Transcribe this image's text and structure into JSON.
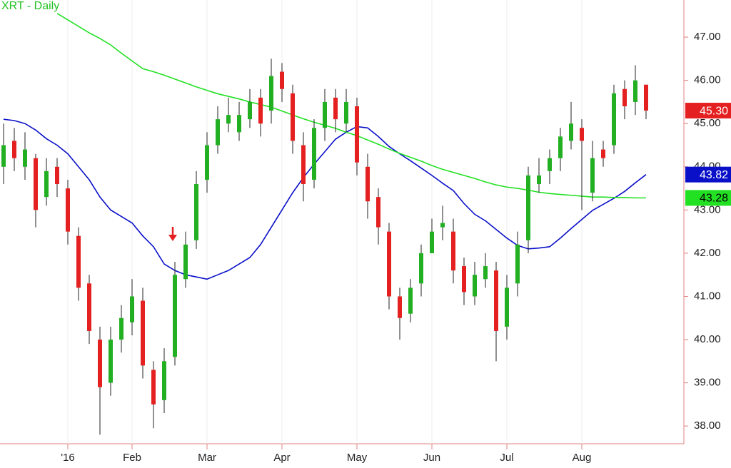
{
  "chart_data": {
    "type": "candlestick",
    "title": "XRT - Daily",
    "categories": [
      null,
      null,
      null,
      null,
      null,
      null,
      "'16",
      null,
      null,
      null,
      null,
      null,
      "Feb",
      null,
      null,
      null,
      null,
      null,
      null,
      "Mar",
      null,
      null,
      null,
      null,
      null,
      null,
      "Apr",
      null,
      null,
      null,
      null,
      null,
      null,
      "May",
      null,
      null,
      null,
      null,
      null,
      null,
      "Jun",
      null,
      null,
      null,
      null,
      null,
      null,
      "Jul",
      null,
      null,
      null,
      null,
      null,
      null,
      "Aug",
      null,
      null,
      null,
      null,
      null,
      null
    ],
    "open": [
      44.0,
      44.6,
      44.0,
      44.2,
      43.3,
      44.0,
      43.5,
      42.4,
      41.3,
      40.0,
      39.0,
      40.0,
      40.4,
      40.9,
      39.3,
      38.6,
      39.6,
      41.4,
      42.3,
      43.7,
      44.5,
      45.0,
      44.8,
      45.1,
      45.6,
      45.3,
      46.2,
      45.7,
      44.5,
      43.7,
      44.9,
      45.6,
      45.0,
      45.4,
      44.0,
      43.3,
      42.5,
      41.0,
      40.6,
      41.3,
      42.0,
      42.6,
      42.5,
      41.7,
      41.0,
      41.4,
      41.6,
      40.3,
      41.3,
      42.3,
      43.6,
      43.9,
      44.2,
      44.6,
      44.9,
      43.4,
      44.4,
      44.5,
      45.8,
      45.5,
      45.9
    ],
    "high": [
      45.0,
      44.9,
      44.8,
      44.3,
      44.2,
      44.2,
      43.7,
      42.6,
      41.5,
      40.3,
      40.3,
      40.8,
      41.4,
      41.2,
      39.5,
      39.8,
      41.8,
      42.5,
      43.9,
      44.8,
      45.4,
      45.6,
      45.5,
      45.8,
      45.8,
      46.5,
      46.4,
      45.9,
      44.8,
      45.1,
      45.8,
      45.8,
      45.8,
      45.6,
      44.3,
      43.5,
      42.7,
      41.2,
      41.4,
      42.2,
      42.8,
      43.1,
      42.8,
      41.9,
      41.8,
      42.0,
      41.8,
      41.5,
      42.5,
      44.0,
      44.2,
      44.4,
      44.9,
      45.5,
      45.1,
      44.6,
      44.6,
      45.9,
      46.0,
      46.35,
      45.9
    ],
    "low": [
      43.6,
      43.9,
      43.7,
      42.6,
      43.1,
      43.3,
      42.2,
      40.9,
      39.9,
      37.8,
      38.7,
      39.7,
      40.1,
      39.1,
      37.95,
      38.3,
      39.4,
      41.2,
      42.1,
      43.4,
      44.3,
      44.8,
      44.6,
      44.9,
      44.7,
      45.0,
      45.5,
      44.3,
      43.2,
      43.5,
      44.6,
      44.8,
      44.8,
      43.8,
      42.8,
      42.2,
      40.7,
      40.0,
      40.4,
      41.0,
      42.0,
      42.3,
      41.3,
      40.8,
      40.8,
      41.2,
      39.5,
      40.0,
      41.0,
      42.0,
      43.4,
      43.6,
      43.9,
      44.4,
      43.0,
      43.2,
      44.0,
      44.3,
      45.1,
      45.2,
      45.1
    ],
    "close": [
      44.5,
      44.2,
      44.4,
      43.0,
      43.9,
      43.6,
      42.5,
      41.2,
      40.2,
      38.9,
      40.0,
      40.5,
      41.0,
      39.4,
      38.5,
      39.5,
      41.5,
      42.2,
      43.6,
      44.5,
      45.1,
      45.2,
      45.2,
      45.5,
      45.0,
      46.1,
      45.8,
      44.6,
      43.6,
      44.9,
      45.5,
      45.1,
      45.5,
      44.1,
      43.2,
      42.6,
      41.0,
      40.5,
      41.2,
      42.0,
      42.5,
      42.7,
      41.6,
      41.1,
      41.5,
      41.7,
      40.2,
      41.2,
      42.2,
      43.8,
      43.8,
      44.2,
      44.7,
      45.0,
      44.6,
      44.2,
      44.2,
      45.7,
      45.4,
      46.0,
      45.3
    ],
    "up_color": "#22b022",
    "down_color": "#e52020",
    "last_label": {
      "value": 45.3,
      "label": "45.30",
      "color": "#e52020"
    },
    "moving_averages": [
      {
        "color": "#0a10c8",
        "values": [
          45.1,
          45.07,
          45.0,
          44.85,
          44.65,
          44.5,
          44.3,
          44.0,
          43.7,
          43.3,
          43.0,
          42.85,
          42.7,
          42.4,
          42.15,
          41.75,
          41.6,
          41.5,
          41.45,
          41.4,
          41.5,
          41.6,
          41.75,
          41.9,
          42.2,
          42.6,
          43.0,
          43.4,
          43.75,
          44.06,
          44.35,
          44.64,
          44.8,
          44.93,
          44.9,
          44.7,
          44.47,
          44.3,
          44.14,
          43.97,
          43.8,
          43.62,
          43.45,
          43.15,
          42.9,
          42.75,
          42.55,
          42.35,
          42.18,
          42.1,
          42.12,
          42.15,
          42.35,
          42.57,
          42.78,
          42.99,
          43.13,
          43.27,
          43.43,
          43.63,
          43.82
        ],
        "last_label": {
          "value": 43.82,
          "label": "43.82"
        }
      },
      {
        "color": "#22e022",
        "values": [
          null,
          null,
          null,
          null,
          null,
          47.55,
          47.4,
          47.25,
          47.1,
          46.97,
          46.82,
          46.63,
          46.45,
          46.27,
          46.2,
          46.12,
          46.03,
          45.94,
          45.85,
          45.77,
          45.69,
          45.63,
          45.57,
          45.5,
          45.44,
          45.38,
          45.29,
          45.2,
          45.11,
          45.03,
          44.96,
          44.89,
          44.8,
          44.72,
          44.62,
          44.52,
          44.41,
          44.31,
          44.22,
          44.13,
          44.03,
          43.94,
          43.87,
          43.8,
          43.73,
          43.65,
          43.58,
          43.53,
          43.5,
          43.46,
          43.41,
          43.38,
          43.36,
          43.34,
          43.32,
          43.3,
          43.3,
          43.29,
          43.29,
          43.28,
          43.28
        ],
        "last_label": {
          "value": 43.28,
          "label": "43.28"
        }
      }
    ],
    "ylim": [
      37.59,
      47.86
    ],
    "yticks": [
      {
        "value": 38,
        "label": "38.00"
      },
      {
        "value": 39,
        "label": "39.00"
      },
      {
        "value": 40,
        "label": "40.00"
      },
      {
        "value": 41,
        "label": "41.00"
      },
      {
        "value": 42,
        "label": "42.00"
      },
      {
        "value": 43,
        "label": "43.00"
      },
      {
        "value": 44,
        "label": "44.00"
      },
      {
        "value": 45,
        "label": "45.00"
      },
      {
        "value": 46,
        "label": "46.00"
      },
      {
        "value": 47,
        "label": "47.00"
      }
    ]
  }
}
